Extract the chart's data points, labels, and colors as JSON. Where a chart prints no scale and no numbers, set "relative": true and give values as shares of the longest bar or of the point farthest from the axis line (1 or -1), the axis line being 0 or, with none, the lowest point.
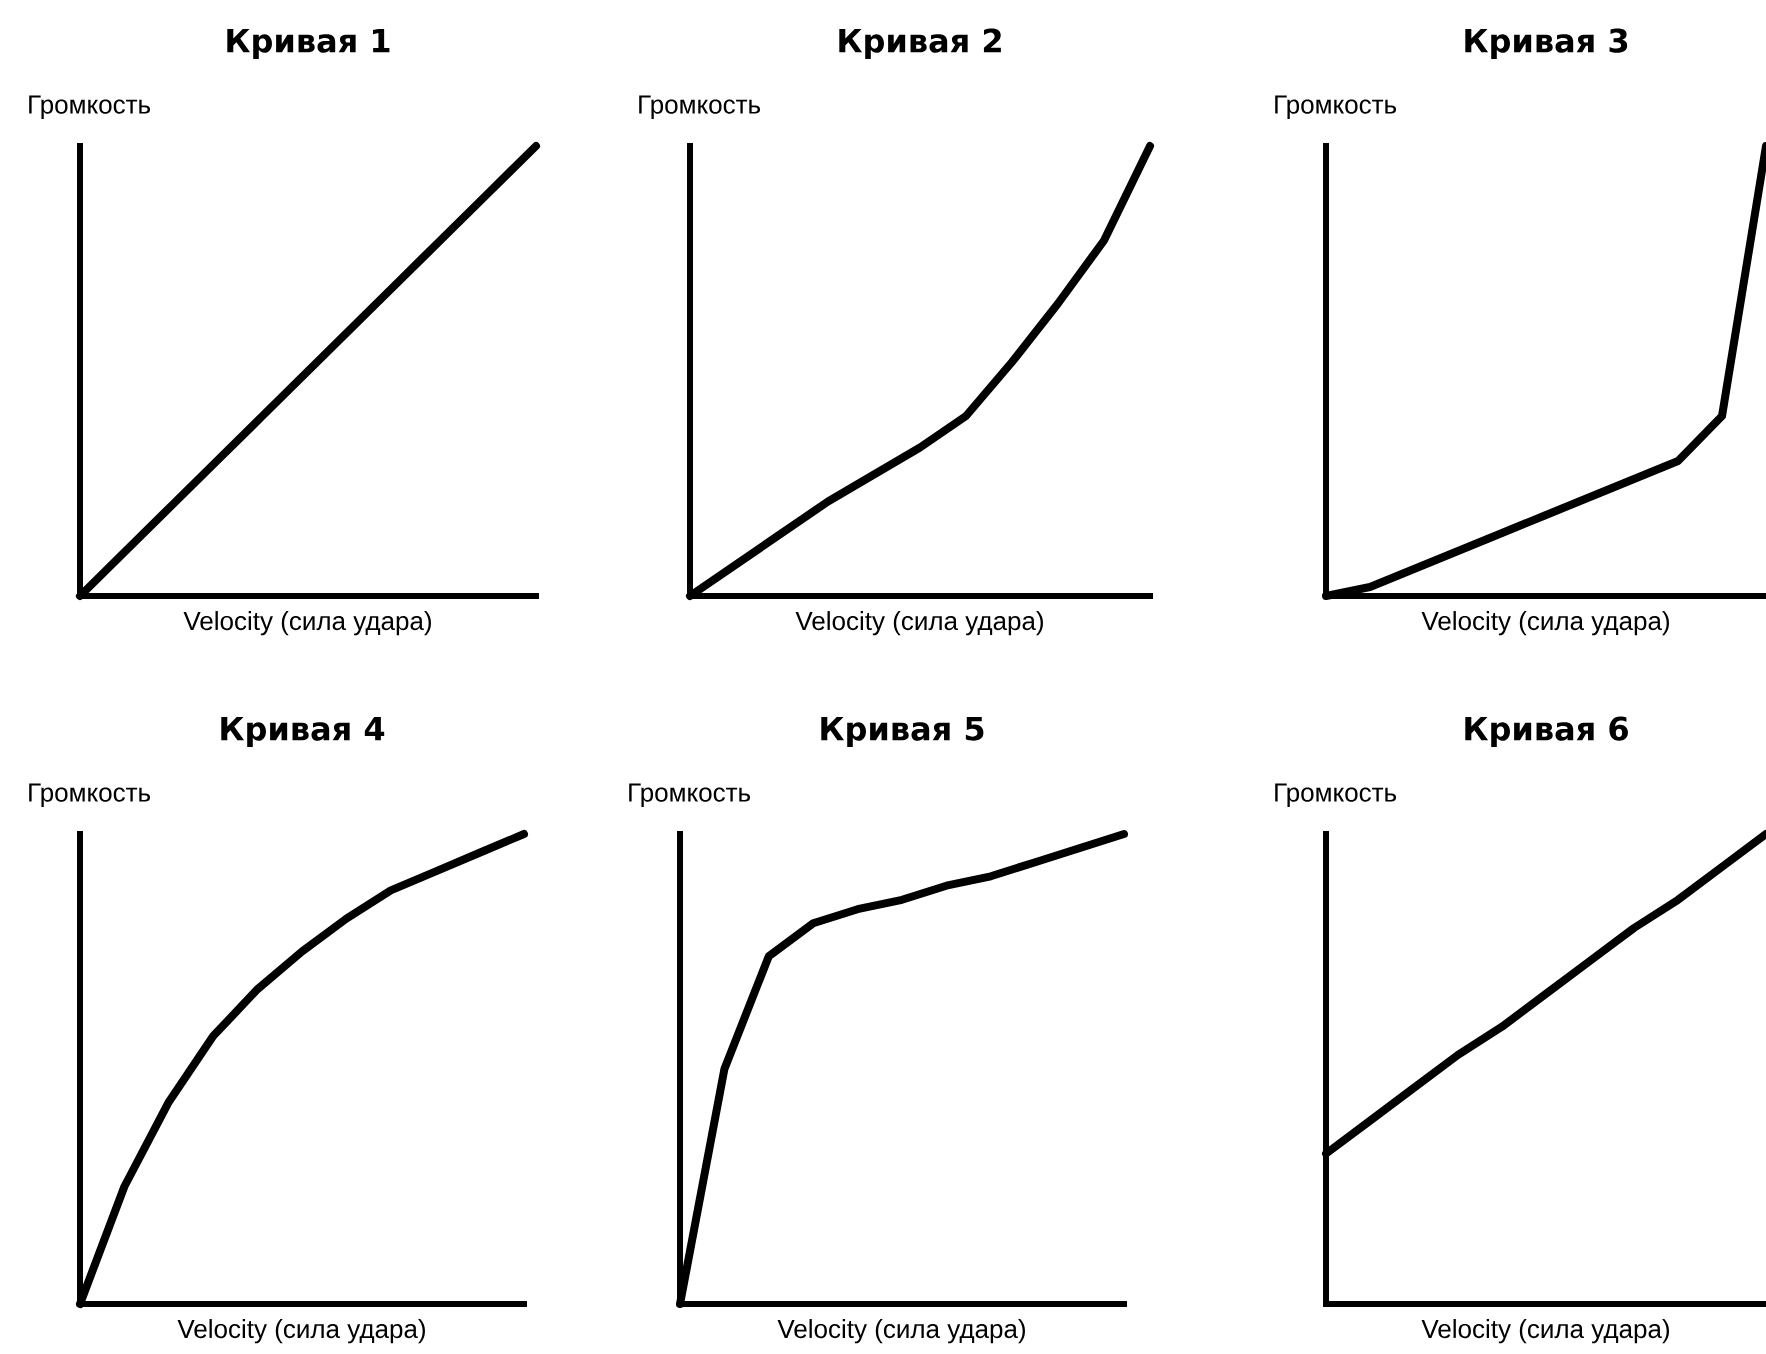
{
  "chart_data": [
    {
      "type": "line",
      "title": "Кривая 1",
      "xlabel": "Velocity (сила удара)",
      "ylabel": "Громкость",
      "relative": true,
      "color": "#000000",
      "categories": [
        null,
        null,
        null,
        null,
        null,
        null,
        null,
        null,
        null,
        null,
        null
      ],
      "values": [
        0,
        0.1,
        0.2,
        0.3,
        0.4,
        0.5,
        0.6,
        0.7,
        0.8,
        0.9,
        1.0
      ]
    },
    {
      "type": "line",
      "title": "Кривая 2",
      "xlabel": "Velocity (сила удара)",
      "ylabel": "Громкость",
      "relative": true,
      "color": "#000000",
      "categories": [
        null,
        null,
        null,
        null,
        null,
        null,
        null,
        null,
        null,
        null,
        null
      ],
      "values": [
        0,
        0.07,
        0.14,
        0.21,
        0.27,
        0.33,
        0.4,
        0.52,
        0.65,
        0.79,
        1.0
      ]
    },
    {
      "type": "line",
      "title": "Кривая 3",
      "xlabel": "Velocity (сила удара)",
      "ylabel": "Громкость",
      "relative": true,
      "color": "#000000",
      "categories": [
        null,
        null,
        null,
        null,
        null,
        null,
        null,
        null,
        null,
        null,
        null
      ],
      "values": [
        0,
        0.02,
        0.06,
        0.1,
        0.14,
        0.18,
        0.22,
        0.26,
        0.3,
        0.4,
        1.0
      ]
    },
    {
      "type": "line",
      "title": "Кривая 4",
      "xlabel": "Velocity (сила удара)",
      "ylabel": "Громкость",
      "relative": true,
      "color": "#000000",
      "categories": [
        null,
        null,
        null,
        null,
        null,
        null,
        null,
        null,
        null,
        null,
        null
      ],
      "values": [
        0,
        0.25,
        0.43,
        0.57,
        0.67,
        0.75,
        0.82,
        0.88,
        0.92,
        0.96,
        1.0
      ]
    },
    {
      "type": "line",
      "title": "Кривая 5",
      "xlabel": "Velocity (сила удара)",
      "ylabel": "Громкость",
      "relative": true,
      "color": "#000000",
      "categories": [
        null,
        null,
        null,
        null,
        null,
        null,
        null,
        null,
        null,
        null,
        null
      ],
      "values": [
        0,
        0.5,
        0.74,
        0.81,
        0.84,
        0.86,
        0.89,
        0.91,
        0.94,
        0.97,
        1.0
      ]
    },
    {
      "type": "line",
      "title": "Кривая 6",
      "xlabel": "Velocity (сила удара)",
      "ylabel": "Громкость",
      "relative": true,
      "color": "#000000",
      "categories": [
        null,
        null,
        null,
        null,
        null,
        null,
        null,
        null,
        null,
        null,
        null
      ],
      "values": [
        0.32,
        0.39,
        0.46,
        0.53,
        0.59,
        0.66,
        0.73,
        0.8,
        0.86,
        0.93,
        1.0
      ]
    }
  ]
}
